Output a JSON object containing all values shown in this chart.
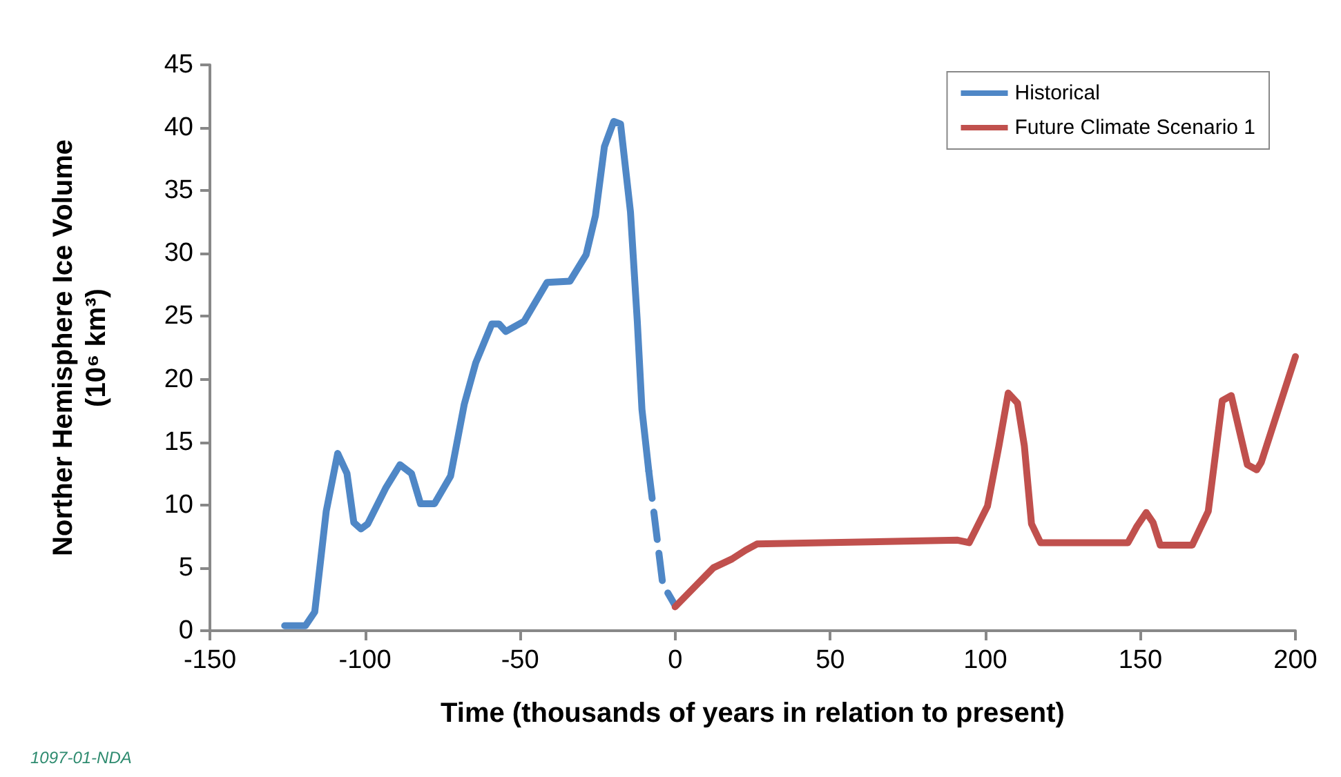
{
  "chart_data": {
    "type": "line",
    "xlabel": "Time (thousands of years in relation to present)",
    "ylabel": "Norther Hemisphere Ice Volume\n(10⁶ km³)",
    "annotations": [
      "1097-01-NDA"
    ],
    "xlim": [
      -150,
      200
    ],
    "xticks": [
      -150,
      -100,
      -50,
      0,
      50,
      100,
      150,
      200
    ],
    "ylim": [
      0,
      45
    ],
    "yticks": [
      0,
      5,
      10,
      15,
      20,
      25,
      30,
      35,
      40,
      45
    ],
    "grid": false,
    "legend": "top right",
    "marker": "none",
    "series": [
      {
        "name": "Historical",
        "color": "#4f87c6",
        "line_style": "solid",
        "x": [
          -125.9,
          -119.2,
          -116.2,
          -112.5,
          -108.8,
          -105.8,
          -103.6,
          -101.3,
          -99.1,
          -93.2,
          -88.7,
          -85.0,
          -82.1,
          -77.6,
          -72.4,
          -68.0,
          -64.3,
          -59.1,
          -56.8,
          -54.6,
          -48.7,
          -41.3,
          -33.9,
          -28.7,
          -25.7,
          -22.8,
          -19.8,
          -17.6,
          -14.4,
          -12.2,
          -10.7,
          -8.5
        ],
        "values": [
          0.4,
          0.4,
          1.5,
          9.5,
          14.1,
          12.5,
          8.6,
          8.1,
          8.5,
          11.4,
          13.2,
          12.5,
          10.1,
          10.1,
          12.3,
          18.0,
          21.3,
          24.4,
          24.4,
          23.8,
          24.6,
          27.7,
          27.8,
          29.9,
          33.0,
          38.5,
          40.5,
          40.3,
          33.3,
          24.6,
          17.6,
          12.7
        ]
      },
      {
        "color": "#4f87c6",
        "line_style": "dashed",
        "x": [
          -8.5,
          -4.0,
          0
        ],
        "values": [
          12.7,
          3.7,
          2.0
        ]
      },
      {
        "name": "Future Climate Scenario 1",
        "color": "#c0504d",
        "line_style": "solid",
        "x": [
          0,
          12.3,
          18.3,
          22.7,
          26.4,
          91.1,
          94.8,
          100.7,
          104.4,
          107.4,
          110.4,
          112.6,
          114.9,
          117.8,
          146.0,
          148.9,
          151.9,
          154.1,
          156.4,
          166.7,
          171.9,
          176.4,
          179.3,
          184.5,
          187.5,
          189.0,
          200
        ],
        "values": [
          1.9,
          5.0,
          5.7,
          6.4,
          6.9,
          7.2,
          7.0,
          9.9,
          14.7,
          18.9,
          18.1,
          14.7,
          8.5,
          7.0,
          7.0,
          8.3,
          9.4,
          8.6,
          6.8,
          6.8,
          9.5,
          18.3,
          18.7,
          13.2,
          12.8,
          13.4,
          21.8
        ]
      }
    ]
  }
}
